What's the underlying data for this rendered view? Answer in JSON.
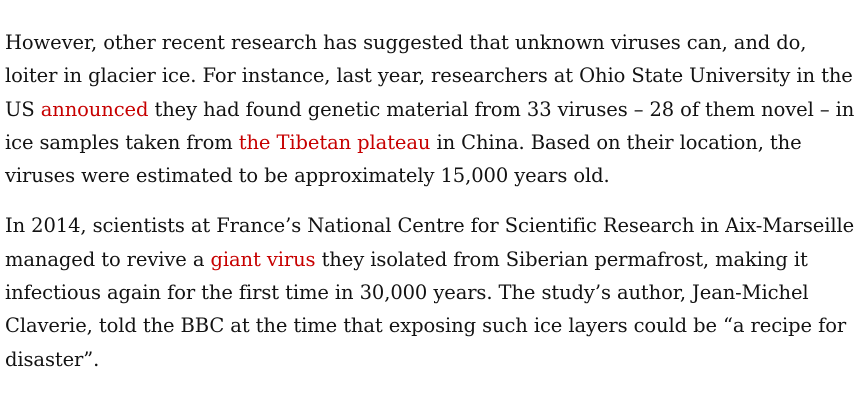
{
  "paragraphs": [
    {
      "segments": [
        {
          "text": "However, other recent research has suggested that unknown viruses can, and do, loiter in glacier ice. For instance, last year, researchers at Ohio State University in the US ",
          "link": false
        },
        {
          "text": "announced",
          "link": true
        },
        {
          "text": " they had found genetic material from 33 viruses – 28 of them novel – in ice samples taken from ",
          "link": false
        },
        {
          "text": "the Tibetan plateau",
          "link": true
        },
        {
          "text": " in China. Based on their location, the viruses were estimated to be approximately 15,000 years old.",
          "link": false
        }
      ]
    },
    {
      "segments": [
        {
          "text": "In 2014, scientists at France’s National Centre for Scientific Research in Aix-Marseille managed to revive a ",
          "link": false
        },
        {
          "text": "giant virus",
          "link": true
        },
        {
          "text": " they isolated from Siberian permafrost, making it infectious again for the first time in 30,000 years. The study’s author, Jean-Michel Claverie, told the BBC at the time that exposing such ice layers could be “a recipe for disaster”.",
          "link": false
        }
      ]
    }
  ],
  "colors": {
    "text": "#121212",
    "link": "#c70000"
  }
}
